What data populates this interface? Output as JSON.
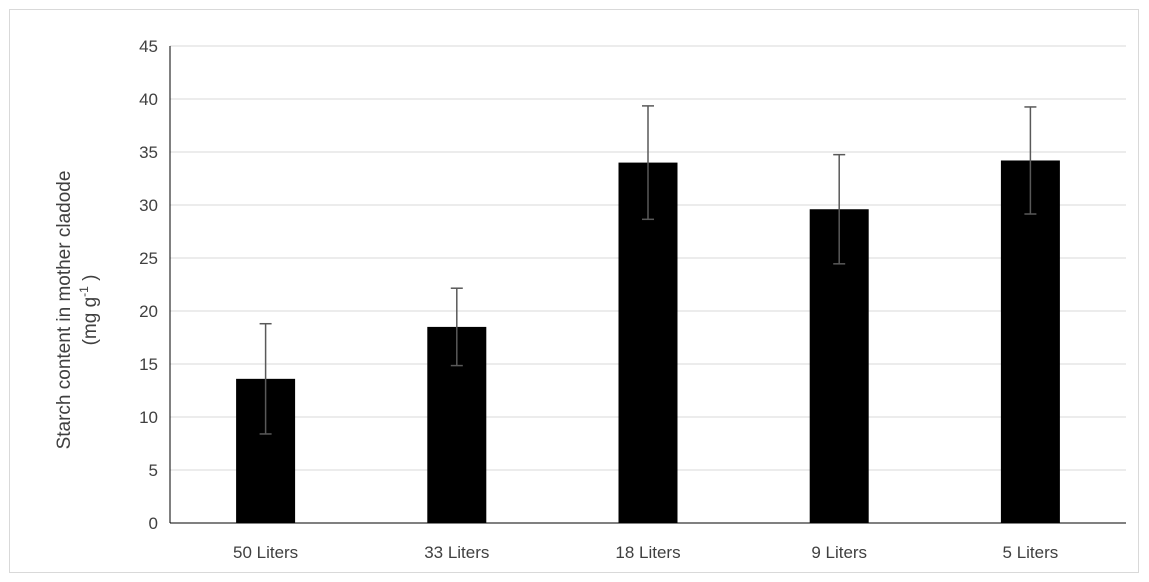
{
  "chart_data": {
    "type": "bar",
    "categories": [
      "50 Liters",
      "33 Liters",
      "18 Liters",
      "9 Liters",
      "5 Liters"
    ],
    "values": [
      13.6,
      18.5,
      34.0,
      29.6,
      34.2
    ],
    "errors": [
      5.2,
      3.65,
      5.35,
      5.15,
      5.05
    ],
    "ylabel_line1": "Starch content in mother cladode",
    "ylabel_line2_prefix": "(mg g",
    "ylabel_superscript": "-1",
    "ylabel_line2_suffix": " )",
    "ylim": [
      0,
      45
    ],
    "yticks": [
      0,
      5,
      10,
      15,
      20,
      25,
      30,
      35,
      40,
      45
    ],
    "grid": true,
    "bar_color": "#000000",
    "error_color": "#595959"
  }
}
